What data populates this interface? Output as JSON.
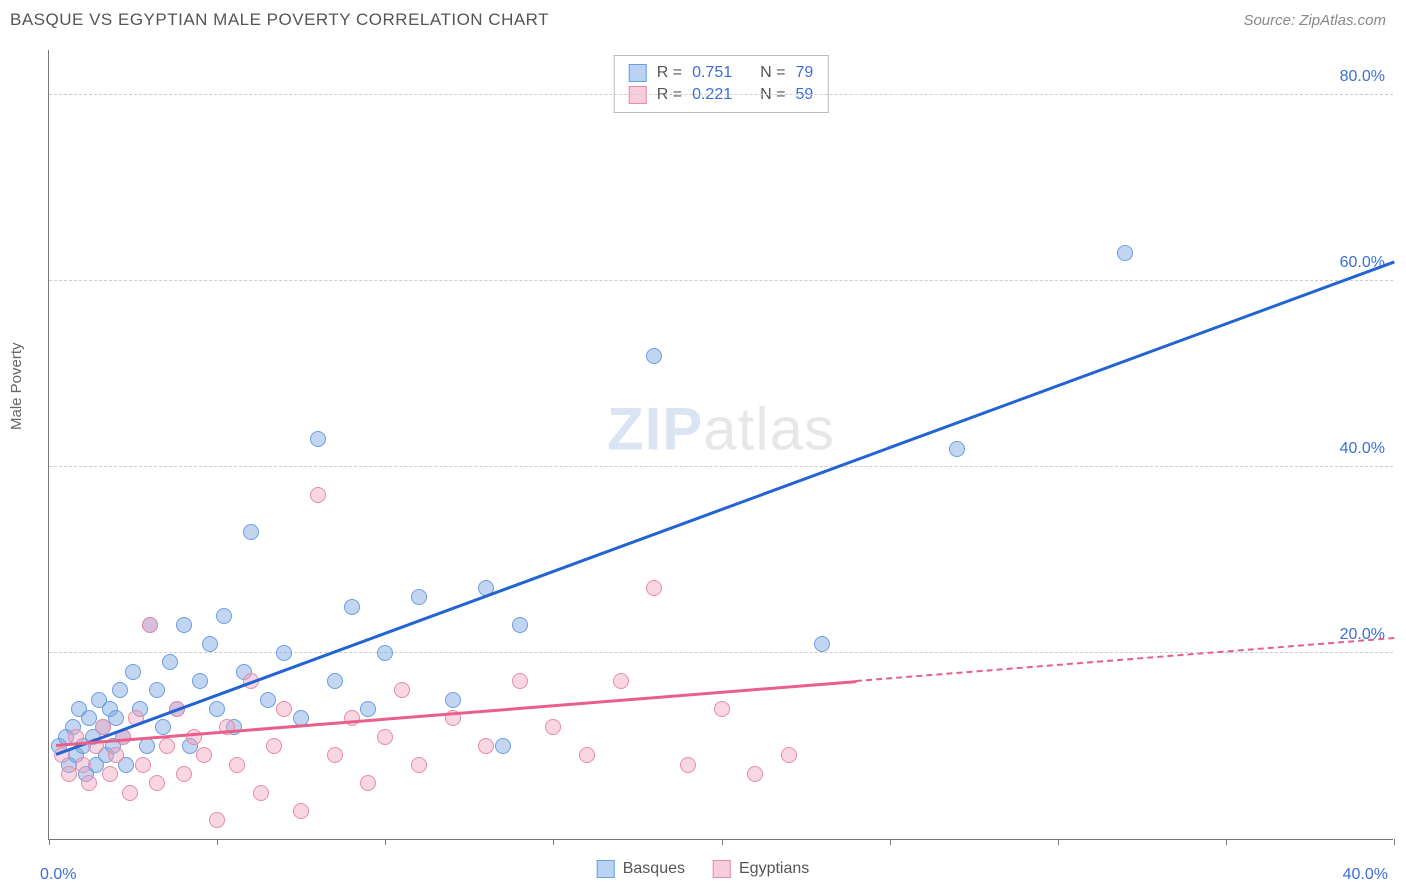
{
  "title": "BASQUE VS EGYPTIAN MALE POVERTY CORRELATION CHART",
  "source_label": "Source: ZipAtlas.com",
  "y_axis_label": "Male Poverty",
  "watermark": {
    "part1": "ZIP",
    "part2": "atlas"
  },
  "chart": {
    "type": "scatter",
    "background_color": "#ffffff",
    "grid_color": "#cccccc",
    "axis_color": "#777777",
    "xlim": [
      0,
      40
    ],
    "ylim": [
      0,
      85
    ],
    "x_origin_label": "0.0%",
    "x_max_label": "40.0%",
    "x_ticks": [
      0,
      5,
      10,
      15,
      20,
      25,
      30,
      35,
      40
    ],
    "y_gridlines": [
      {
        "value": 20,
        "label": "20.0%"
      },
      {
        "value": 40,
        "label": "40.0%"
      },
      {
        "value": 60,
        "label": "60.0%"
      },
      {
        "value": 80,
        "label": "80.0%"
      }
    ],
    "marker_radius": 8,
    "marker_stroke_width": 1.2,
    "series": [
      {
        "name": "Basques",
        "fill": "rgba(120,165,225,0.45)",
        "stroke": "#6a9de0",
        "r_value": "0.751",
        "n_value": "79",
        "legend_swatch_fill": "#b9d2f2",
        "legend_swatch_border": "#6a9de0",
        "trend": {
          "color": "#2364d2",
          "x1": 0.2,
          "y1": 9.0,
          "x2": 40,
          "y2": 62.0,
          "dashed_from_x": null
        },
        "points": [
          [
            0.3,
            10
          ],
          [
            0.5,
            11
          ],
          [
            0.6,
            8
          ],
          [
            0.7,
            12
          ],
          [
            0.8,
            9
          ],
          [
            0.9,
            14
          ],
          [
            1.0,
            10
          ],
          [
            1.1,
            7
          ],
          [
            1.2,
            13
          ],
          [
            1.3,
            11
          ],
          [
            1.4,
            8
          ],
          [
            1.5,
            15
          ],
          [
            1.6,
            12
          ],
          [
            1.7,
            9
          ],
          [
            1.8,
            14
          ],
          [
            1.9,
            10
          ],
          [
            2.0,
            13
          ],
          [
            2.1,
            16
          ],
          [
            2.2,
            11
          ],
          [
            2.3,
            8
          ],
          [
            2.5,
            18
          ],
          [
            2.7,
            14
          ],
          [
            2.9,
            10
          ],
          [
            3.0,
            23
          ],
          [
            3.2,
            16
          ],
          [
            3.4,
            12
          ],
          [
            3.6,
            19
          ],
          [
            3.8,
            14
          ],
          [
            4.0,
            23
          ],
          [
            4.2,
            10
          ],
          [
            4.5,
            17
          ],
          [
            4.8,
            21
          ],
          [
            5.0,
            14
          ],
          [
            5.2,
            24
          ],
          [
            5.5,
            12
          ],
          [
            5.8,
            18
          ],
          [
            6.0,
            33
          ],
          [
            6.5,
            15
          ],
          [
            7.0,
            20
          ],
          [
            7.5,
            13
          ],
          [
            8.0,
            43
          ],
          [
            8.5,
            17
          ],
          [
            9.0,
            25
          ],
          [
            9.5,
            14
          ],
          [
            10.0,
            20
          ],
          [
            11.0,
            26
          ],
          [
            12.0,
            15
          ],
          [
            13.0,
            27
          ],
          [
            13.5,
            10
          ],
          [
            14.0,
            23
          ],
          [
            18.0,
            52
          ],
          [
            23.0,
            21
          ],
          [
            27.0,
            42
          ],
          [
            32.0,
            63
          ]
        ]
      },
      {
        "name": "Egyptians",
        "fill": "rgba(240,160,185,0.42)",
        "stroke": "#e88aa8",
        "r_value": "0.221",
        "n_value": "59",
        "legend_swatch_fill": "#f6cdd9",
        "legend_swatch_border": "#e88aa8",
        "trend": {
          "color": "#e85f8a",
          "x1": 0.2,
          "y1": 10.0,
          "x2": 40,
          "y2": 21.5,
          "dashed_from_x": 24
        },
        "points": [
          [
            0.4,
            9
          ],
          [
            0.6,
            7
          ],
          [
            0.8,
            11
          ],
          [
            1.0,
            8
          ],
          [
            1.2,
            6
          ],
          [
            1.4,
            10
          ],
          [
            1.6,
            12
          ],
          [
            1.8,
            7
          ],
          [
            2.0,
            9
          ],
          [
            2.2,
            11
          ],
          [
            2.4,
            5
          ],
          [
            2.6,
            13
          ],
          [
            2.8,
            8
          ],
          [
            3.0,
            23
          ],
          [
            3.2,
            6
          ],
          [
            3.5,
            10
          ],
          [
            3.8,
            14
          ],
          [
            4.0,
            7
          ],
          [
            4.3,
            11
          ],
          [
            4.6,
            9
          ],
          [
            5.0,
            2
          ],
          [
            5.3,
            12
          ],
          [
            5.6,
            8
          ],
          [
            6.0,
            17
          ],
          [
            6.3,
            5
          ],
          [
            6.7,
            10
          ],
          [
            7.0,
            14
          ],
          [
            7.5,
            3
          ],
          [
            8.0,
            37
          ],
          [
            8.5,
            9
          ],
          [
            9.0,
            13
          ],
          [
            9.5,
            6
          ],
          [
            10.0,
            11
          ],
          [
            10.5,
            16
          ],
          [
            11.0,
            8
          ],
          [
            12.0,
            13
          ],
          [
            13.0,
            10
          ],
          [
            14.0,
            17
          ],
          [
            15.0,
            12
          ],
          [
            16.0,
            9
          ],
          [
            17.0,
            17
          ],
          [
            18.0,
            27
          ],
          [
            19.0,
            8
          ],
          [
            20.0,
            14
          ],
          [
            21.0,
            7
          ],
          [
            22.0,
            9
          ]
        ]
      }
    ],
    "legend_top": {
      "r_label": "R =",
      "n_label": "N ="
    },
    "legend_bottom": {
      "items": [
        "Basques",
        "Egyptians"
      ]
    }
  }
}
